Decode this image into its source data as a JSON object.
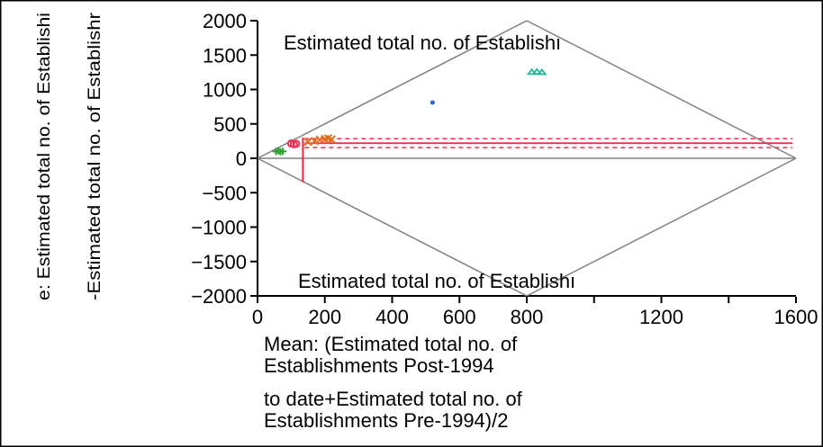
{
  "chart_data": {
    "type": "scatter",
    "title": "",
    "xlabel_lines": [
      "Mean: (Estimated total no. of",
      "Establishments Post-1994",
      "to date+Estimated total no. of",
      "Establishments Pre-1994)/2"
    ],
    "ylabel_outer": "e: Estimated total no. of Establishi",
    "ylabel_inner": "-Estimated total no. of Establishr",
    "region_label_top": "Estimated total no. of Establishı",
    "region_label_bottom": "Estimated total no. of Establishı",
    "xlim": [
      0,
      1600
    ],
    "ylim": [
      -2000,
      2000
    ],
    "x_ticks": [
      0,
      200,
      400,
      600,
      800,
      1200,
      1600
    ],
    "x_tick_labels": [
      "0",
      "200",
      "400",
      "600",
      "800",
      "1200",
      "1600"
    ],
    "x_minor_ticks": [
      1000,
      1400
    ],
    "y_ticks": [
      2000,
      1500,
      1000,
      500,
      0,
      -500,
      -1000,
      -1500,
      -2000
    ],
    "y_tick_labels": [
      "2000",
      "1500",
      "1000",
      "500",
      "0",
      "−500",
      "−1000",
      "−1500",
      "−2000"
    ],
    "mean_difference": 220,
    "limits_of_agreement": [
      155,
      285
    ],
    "limit_of_agreement_line_extent_x": [
      140,
      1590
    ],
    "mean_line_extent_x": [
      0,
      1600
    ],
    "vertical_marker_x": 135,
    "vertical_marker_y_range": [
      -350,
      300
    ],
    "clusters": [
      {
        "marker": "plus",
        "color": "#2ca02c",
        "points": [
          [
            55,
            100
          ],
          [
            62,
            108
          ],
          [
            68,
            95
          ],
          [
            75,
            102
          ]
        ]
      },
      {
        "marker": "ring",
        "color": "#e8335a",
        "points": [
          [
            100,
            215
          ],
          [
            108,
            205
          ],
          [
            115,
            210
          ]
        ]
      },
      {
        "marker": "cross",
        "color": "#e07020",
        "points": [
          [
            150,
            240
          ],
          [
            170,
            250
          ],
          [
            185,
            270
          ],
          [
            200,
            280
          ],
          [
            210,
            290
          ],
          [
            220,
            275
          ]
        ]
      },
      {
        "marker": "dot",
        "color": "#2a6ad8",
        "points": [
          [
            520,
            810
          ]
        ]
      },
      {
        "marker": "tri",
        "color": "#1fb89a",
        "points": [
          [
            815,
            1250
          ],
          [
            830,
            1255
          ],
          [
            845,
            1248
          ]
        ]
      }
    ],
    "diamond_color": "#808080",
    "loa_color": "#e8334a",
    "grid": false,
    "legend": "none"
  }
}
